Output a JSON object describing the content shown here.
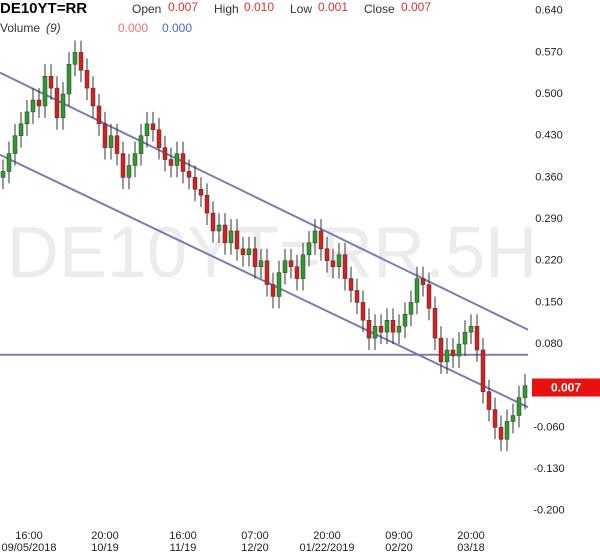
{
  "header": {
    "symbol": "DE10YT=RR",
    "open_label": "Open",
    "open": "0.007",
    "high_label": "High",
    "high": "0.010",
    "low_label": "Low",
    "low": "0.001",
    "close_label": "Close",
    "close": "0.007",
    "volume_label": "Volume",
    "volume_period": "(9)",
    "volume_a": "0.000",
    "volume_b": "0.000"
  },
  "watermark": "DE10YT=RR.5H",
  "chart_data": {
    "type": "candlestick",
    "categories": [
      null,
      null,
      null,
      "16:00\n09/05/2018",
      null,
      null,
      null,
      null,
      null,
      null,
      null,
      null,
      null,
      null,
      null,
      null,
      null,
      "20:00\n10/19",
      null,
      null,
      null,
      null,
      null,
      null,
      null,
      null,
      null,
      null,
      null,
      null,
      "16:00\n11/19",
      null,
      null,
      null,
      null,
      null,
      null,
      null,
      null,
      null,
      null,
      null,
      "07:00\n12/20",
      null,
      null,
      null,
      null,
      null,
      null,
      null,
      null,
      null,
      null,
      null,
      "20:00\n01/22/2019",
      null,
      null,
      null,
      null,
      null,
      null,
      null,
      null,
      null,
      null,
      null,
      "09:00\n02/20",
      null,
      null,
      null,
      null,
      null,
      null,
      null,
      null,
      null,
      null,
      null,
      "20:00\n03/18",
      null,
      null,
      null,
      null,
      null,
      null,
      null,
      null,
      null
    ],
    "open": [
      0.36,
      0.37,
      0.4,
      0.43,
      0.45,
      0.47,
      0.49,
      0.48,
      0.53,
      0.51,
      0.46,
      0.5,
      0.55,
      0.57,
      0.54,
      0.51,
      0.48,
      0.45,
      0.41,
      0.43,
      0.4,
      0.36,
      0.38,
      0.4,
      0.43,
      0.45,
      0.44,
      0.41,
      0.39,
      0.38,
      0.4,
      0.37,
      0.36,
      0.34,
      0.33,
      0.3,
      0.27,
      0.28,
      0.25,
      0.27,
      0.24,
      0.23,
      0.24,
      0.21,
      0.22,
      0.18,
      0.16,
      0.2,
      0.22,
      0.21,
      0.19,
      0.23,
      0.25,
      0.27,
      0.24,
      0.22,
      0.21,
      0.23,
      0.19,
      0.17,
      0.15,
      0.12,
      0.09,
      0.11,
      0.1,
      0.12,
      0.1,
      0.11,
      0.13,
      0.15,
      0.19,
      0.18,
      0.14,
      0.09,
      0.05,
      0.07,
      0.06,
      0.08,
      0.1,
      0.11,
      0.07,
      0.0,
      -0.03,
      -0.06,
      -0.08,
      -0.05,
      -0.04,
      -0.01
    ],
    "high": [
      0.39,
      0.42,
      0.45,
      0.47,
      0.49,
      0.51,
      0.51,
      0.55,
      0.55,
      0.53,
      0.52,
      0.57,
      0.59,
      0.59,
      0.56,
      0.53,
      0.5,
      0.47,
      0.45,
      0.45,
      0.42,
      0.4,
      0.42,
      0.45,
      0.47,
      0.47,
      0.46,
      0.43,
      0.41,
      0.42,
      0.42,
      0.39,
      0.38,
      0.36,
      0.35,
      0.32,
      0.3,
      0.3,
      0.29,
      0.29,
      0.26,
      0.26,
      0.26,
      0.24,
      0.24,
      0.2,
      0.22,
      0.24,
      0.24,
      0.23,
      0.25,
      0.27,
      0.29,
      0.29,
      0.26,
      0.24,
      0.25,
      0.25,
      0.21,
      0.19,
      0.17,
      0.14,
      0.13,
      0.13,
      0.14,
      0.14,
      0.13,
      0.15,
      0.17,
      0.21,
      0.21,
      0.2,
      0.16,
      0.11,
      0.09,
      0.09,
      0.1,
      0.12,
      0.13,
      0.13,
      0.09,
      0.02,
      -0.01,
      -0.04,
      -0.03,
      -0.02,
      0.01,
      0.03
    ],
    "low": [
      0.34,
      0.35,
      0.38,
      0.41,
      0.43,
      0.45,
      0.46,
      0.46,
      0.49,
      0.44,
      0.44,
      0.48,
      0.53,
      0.52,
      0.49,
      0.46,
      0.43,
      0.39,
      0.39,
      0.38,
      0.34,
      0.34,
      0.36,
      0.38,
      0.41,
      0.42,
      0.39,
      0.37,
      0.36,
      0.36,
      0.35,
      0.34,
      0.32,
      0.31,
      0.28,
      0.25,
      0.25,
      0.23,
      0.23,
      0.22,
      0.21,
      0.21,
      0.19,
      0.19,
      0.16,
      0.14,
      0.14,
      0.18,
      0.19,
      0.17,
      0.17,
      0.21,
      0.23,
      0.22,
      0.2,
      0.19,
      0.19,
      0.17,
      0.15,
      0.13,
      0.1,
      0.07,
      0.07,
      0.08,
      0.08,
      0.08,
      0.08,
      0.09,
      0.11,
      0.13,
      0.16,
      0.12,
      0.07,
      0.03,
      0.03,
      0.04,
      0.04,
      0.06,
      0.08,
      0.05,
      -0.02,
      -0.05,
      -0.08,
      -0.1,
      -0.1,
      -0.07,
      -0.06,
      -0.03
    ],
    "close": [
      0.37,
      0.4,
      0.43,
      0.45,
      0.47,
      0.49,
      0.48,
      0.53,
      0.51,
      0.46,
      0.5,
      0.55,
      0.57,
      0.54,
      0.51,
      0.48,
      0.45,
      0.41,
      0.43,
      0.4,
      0.36,
      0.38,
      0.4,
      0.43,
      0.45,
      0.44,
      0.41,
      0.39,
      0.38,
      0.4,
      0.37,
      0.36,
      0.34,
      0.33,
      0.3,
      0.27,
      0.28,
      0.25,
      0.27,
      0.24,
      0.23,
      0.24,
      0.21,
      0.22,
      0.18,
      0.16,
      0.2,
      0.22,
      0.21,
      0.19,
      0.23,
      0.25,
      0.27,
      0.24,
      0.22,
      0.21,
      0.23,
      0.19,
      0.17,
      0.15,
      0.12,
      0.09,
      0.11,
      0.1,
      0.12,
      0.1,
      0.11,
      0.13,
      0.15,
      0.19,
      0.18,
      0.14,
      0.09,
      0.05,
      0.07,
      0.06,
      0.08,
      0.1,
      0.11,
      0.07,
      0.0,
      -0.03,
      -0.06,
      -0.08,
      -0.05,
      -0.04,
      -0.01,
      0.01
    ],
    "up_color": "#2a9d2a",
    "down_color": "#d62020",
    "ylim": [
      -0.229,
      0.658
    ],
    "yticks": [
      {
        "value": 0.64,
        "label": "0.640"
      },
      {
        "value": 0.57,
        "label": "0.570"
      },
      {
        "value": 0.5,
        "label": "0.500"
      },
      {
        "value": 0.43,
        "label": "0.430"
      },
      {
        "value": 0.36,
        "label": "0.360"
      },
      {
        "value": 0.29,
        "label": "0.290"
      },
      {
        "value": 0.22,
        "label": "0.220"
      },
      {
        "value": 0.15,
        "label": "0.150"
      },
      {
        "value": 0.08,
        "label": "0.080"
      },
      {
        "value": -0.06,
        "label": "-0.060"
      },
      {
        "value": -0.13,
        "label": "-0.130"
      },
      {
        "value": -0.2,
        "label": "-0.200"
      }
    ],
    "trendlines": [
      {
        "start": 0.536,
        "end": 0.104
      },
      {
        "start": 0.398,
        "end": -0.026
      }
    ],
    "hline": 0.062,
    "line_color": "#7b7bb5",
    "last_price": {
      "value": 0.007,
      "label": "0.007"
    },
    "last_color": "#e8110f"
  }
}
